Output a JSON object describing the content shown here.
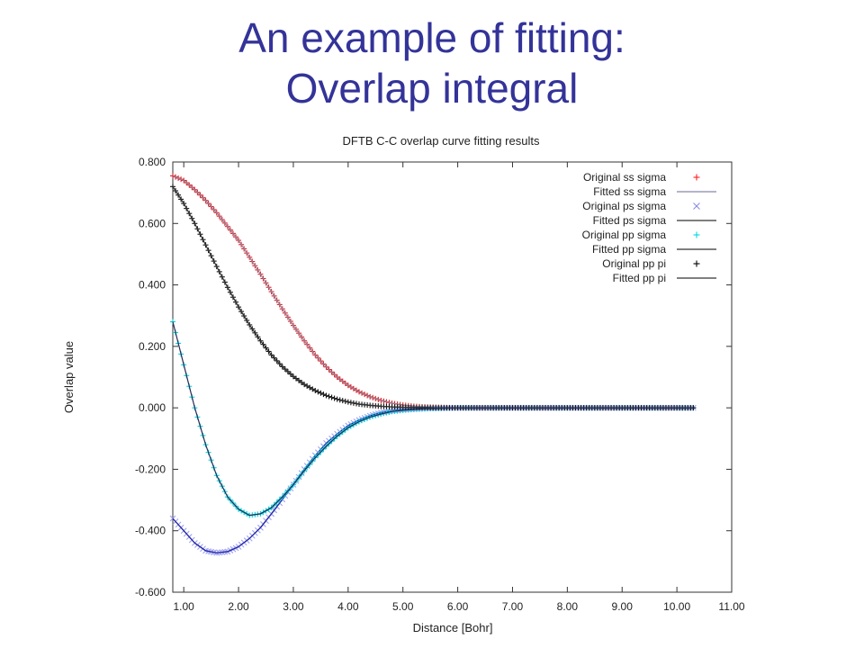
{
  "slide": {
    "title_line1": "An example of fitting:",
    "title_line2": "Overlap integral"
  },
  "chart_data": {
    "type": "scatter",
    "title": "DFTB C-C overlap curve fitting results",
    "xlabel": "Distance [Bohr]",
    "ylabel": "Overlap value",
    "xlim": [
      0.8,
      11.0
    ],
    "ylim": [
      -0.6,
      0.8
    ],
    "xticks": [
      1,
      2,
      3,
      4,
      5,
      6,
      7,
      8,
      9,
      10,
      11
    ],
    "xtick_labels": [
      "1.00",
      "2.00",
      "3.00",
      "4.00",
      "5.00",
      "6.00",
      "7.00",
      "8.00",
      "9.00",
      "10.00",
      "11.00"
    ],
    "yticks": [
      -0.6,
      -0.4,
      -0.2,
      0.0,
      0.2,
      0.4,
      0.6,
      0.8
    ],
    "ytick_labels": [
      "-0.600",
      "-0.400",
      "-0.200",
      "0.000",
      "0.200",
      "0.400",
      "0.600",
      "0.800"
    ],
    "grid": false,
    "legend_position": "top-right",
    "legend": [
      {
        "label": "Original  ss sigma",
        "marker": "+",
        "color": "#ff2020"
      },
      {
        "label": "Fitted  ss sigma",
        "marker": "line",
        "color": "#8888aa"
      },
      {
        "label": "Original  ps sigma",
        "marker": "x",
        "color": "#8a8ee6"
      },
      {
        "label": "Fitted  ps sigma",
        "marker": "line",
        "color": "#333333"
      },
      {
        "label": "Original pp sigma",
        "marker": "+",
        "color": "#00d8e0"
      },
      {
        "label": "Fitted  pp sigma",
        "marker": "line",
        "color": "#333333"
      },
      {
        "label": "Original pp pi",
        "marker": "+",
        "color": "#000000"
      },
      {
        "label": "Fitted  pp pi",
        "marker": "line",
        "color": "#333333"
      }
    ],
    "series": [
      {
        "name": "ss sigma",
        "original_color": "#e02020",
        "fitted_color": "#8888aa",
        "x": [
          0.8,
          1.0,
          1.2,
          1.4,
          1.6,
          1.8,
          2.0,
          2.2,
          2.4,
          2.6,
          2.8,
          3.0,
          3.2,
          3.4,
          3.6,
          3.8,
          4.0,
          4.2,
          4.4,
          4.6,
          4.8,
          5.0,
          5.2,
          5.4,
          5.6,
          5.8,
          6.0,
          6.5,
          7.0,
          7.5,
          8.0,
          9.0,
          10.0,
          10.3
        ],
        "y": [
          0.755,
          0.74,
          0.71,
          0.675,
          0.635,
          0.59,
          0.545,
          0.49,
          0.435,
          0.378,
          0.322,
          0.268,
          0.218,
          0.172,
          0.133,
          0.1,
          0.073,
          0.052,
          0.036,
          0.024,
          0.015,
          0.009,
          0.005,
          0.003,
          0.002,
          0.001,
          0.0,
          0.0,
          0.0,
          0.0,
          0.0,
          0.0,
          0.0,
          0.0
        ]
      },
      {
        "name": "ps sigma",
        "original_color": "#9fa3ee",
        "fitted_color": "#2020a0",
        "x": [
          0.8,
          1.0,
          1.2,
          1.4,
          1.6,
          1.8,
          2.0,
          2.2,
          2.4,
          2.6,
          2.8,
          3.0,
          3.2,
          3.4,
          3.6,
          3.8,
          4.0,
          4.2,
          4.4,
          4.6,
          4.8,
          5.0,
          5.2,
          5.4,
          5.6,
          6.0,
          6.5,
          7.0,
          8.0,
          9.0,
          10.0,
          10.3
        ],
        "y": [
          -0.36,
          -0.4,
          -0.44,
          -0.465,
          -0.472,
          -0.468,
          -0.452,
          -0.425,
          -0.39,
          -0.345,
          -0.298,
          -0.25,
          -0.2,
          -0.155,
          -0.115,
          -0.085,
          -0.058,
          -0.04,
          -0.026,
          -0.016,
          -0.01,
          -0.006,
          -0.004,
          -0.002,
          -0.001,
          0.0,
          0.0,
          0.0,
          0.0,
          0.0,
          0.0,
          0.0
        ]
      },
      {
        "name": "pp sigma",
        "original_color": "#00d4dc",
        "fitted_color": "#2a2a55",
        "x": [
          0.8,
          1.0,
          1.2,
          1.4,
          1.6,
          1.8,
          2.0,
          2.2,
          2.4,
          2.6,
          2.8,
          3.0,
          3.2,
          3.4,
          3.6,
          3.8,
          4.0,
          4.2,
          4.4,
          4.6,
          4.8,
          5.0,
          5.2,
          5.4,
          5.6,
          6.0,
          6.5,
          7.0,
          8.0,
          9.0,
          10.0,
          10.3
        ],
        "y": [
          0.28,
          0.14,
          0.0,
          -0.12,
          -0.22,
          -0.29,
          -0.33,
          -0.35,
          -0.345,
          -0.325,
          -0.29,
          -0.25,
          -0.205,
          -0.162,
          -0.125,
          -0.092,
          -0.065,
          -0.045,
          -0.03,
          -0.02,
          -0.012,
          -0.008,
          -0.005,
          -0.003,
          -0.002,
          0.0,
          0.0,
          0.0,
          0.0,
          0.0,
          0.0,
          0.0
        ]
      },
      {
        "name": "pp pi",
        "original_color": "#111111",
        "fitted_color": "#333333",
        "x": [
          0.8,
          1.0,
          1.2,
          1.4,
          1.6,
          1.8,
          2.0,
          2.2,
          2.4,
          2.6,
          2.8,
          3.0,
          3.2,
          3.4,
          3.6,
          3.8,
          4.0,
          4.2,
          4.4,
          4.6,
          4.8,
          5.0,
          5.2,
          5.4,
          5.6,
          6.0,
          6.5,
          7.0,
          8.0,
          9.0,
          10.0,
          10.3
        ],
        "y": [
          0.72,
          0.665,
          0.6,
          0.53,
          0.46,
          0.392,
          0.328,
          0.27,
          0.218,
          0.172,
          0.134,
          0.102,
          0.076,
          0.056,
          0.04,
          0.028,
          0.019,
          0.012,
          0.008,
          0.005,
          0.003,
          0.002,
          0.001,
          0.001,
          0.0,
          0.0,
          0.0,
          0.0,
          0.0,
          0.0,
          0.0,
          0.0
        ]
      }
    ]
  }
}
